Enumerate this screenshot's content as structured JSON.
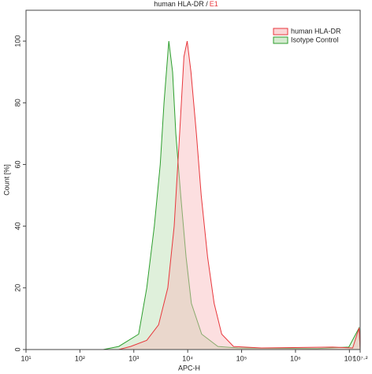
{
  "chart_data": {
    "type": "histogram-overlay",
    "title": "human HLA-DR /",
    "sample": "E1",
    "x_label": "APC-H",
    "y_label": "Count [%]",
    "log_x": true,
    "xlim": [
      10,
      15848932
    ],
    "ylim": [
      0,
      110
    ],
    "xticks": [
      {
        "value": 10,
        "label": "10¹"
      },
      {
        "value": 100,
        "label": "10²"
      },
      {
        "value": 1000,
        "label": "10³"
      },
      {
        "value": 10000,
        "label": "10⁴"
      },
      {
        "value": 100000,
        "label": "10⁵"
      },
      {
        "value": 1000000,
        "label": "10⁶"
      },
      {
        "value": 10000000,
        "label": "10⁷"
      },
      {
        "value": 15848932,
        "label": "10⁷·²"
      }
    ],
    "yticks": [
      0,
      20,
      40,
      60,
      80,
      100
    ],
    "legend": "top-right",
    "series": [
      {
        "name": "human HLA-DR",
        "color": "#e8373c",
        "fill": "#f9b9bb",
        "x": [
          10,
          525,
          871,
          1740,
          2880,
          4270,
          5620,
          7080,
          8510,
          9770,
          11500,
          14500,
          17800,
          23400,
          30900,
          42700,
          70800,
          234000,
          4900000,
          11500000,
          15100000,
          15848932
        ],
        "values": [
          0,
          0,
          1,
          3,
          8,
          20,
          40,
          70,
          95,
          100,
          90,
          70,
          50,
          30,
          15,
          5,
          1,
          0.5,
          0.8,
          0.5,
          7,
          0
        ]
      },
      {
        "name": "Isotype Control",
        "color": "#2e9e2e",
        "fill": "#b9ddb0",
        "x": [
          10,
          270,
          525,
          1230,
          1740,
          2400,
          3090,
          3630,
          4470,
          5250,
          6030,
          7410,
          9330,
          11700,
          18200,
          36300,
          85100,
          2510000,
          9770000,
          15100000,
          15848932
        ],
        "values": [
          0,
          0,
          1,
          5,
          20,
          40,
          60,
          80,
          100,
          90,
          70,
          50,
          30,
          15,
          5,
          1,
          0.5,
          0.3,
          0.8,
          7,
          0
        ]
      }
    ]
  }
}
